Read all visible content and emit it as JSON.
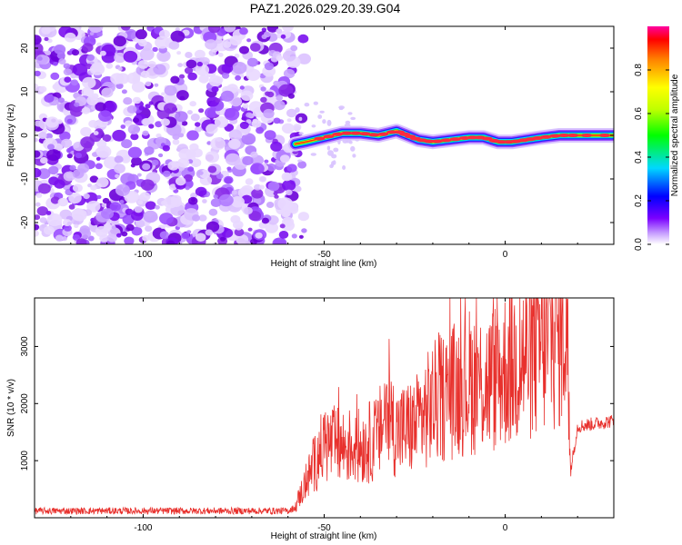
{
  "title": "PAZ1.2026.029.20.39.G04",
  "chart_data": [
    {
      "type": "heatmap",
      "name": "spectrogram",
      "xlabel": "Height of straight line (km)",
      "ylabel": "Frequency (Hz)",
      "xlim": [
        -130,
        30
      ],
      "ylim": [
        -25,
        25
      ],
      "x_ticks": [
        -100,
        -50,
        0
      ],
      "x_tick_labels": [
        "-100",
        "-50",
        "0"
      ],
      "y_ticks": [
        20,
        10,
        0,
        -10,
        -20
      ],
      "y_tick_labels": [
        "20",
        "10",
        "0",
        "-10",
        "-20"
      ],
      "noise_region_end_km": -58,
      "ridge_frequency_hz": [
        [
          -58,
          -2
        ],
        [
          -55,
          -1.5
        ],
        [
          -50,
          -0.5
        ],
        [
          -45,
          0.5
        ],
        [
          -40,
          0.5
        ],
        [
          -35,
          0
        ],
        [
          -30,
          1
        ],
        [
          -27,
          0
        ],
        [
          -24,
          -1
        ],
        [
          -20,
          -1.5
        ],
        [
          -15,
          -1
        ],
        [
          -10,
          -0.5
        ],
        [
          -6,
          -0.5
        ],
        [
          -2,
          -1.5
        ],
        [
          2,
          -1.5
        ],
        [
          6,
          -1
        ],
        [
          10,
          -0.5
        ],
        [
          15,
          0
        ],
        [
          20,
          0
        ],
        [
          30,
          0
        ]
      ],
      "colorbar": {
        "label": "Normalized spectral amplitude",
        "range": [
          0,
          1
        ],
        "ticks": [
          0.0,
          0.2,
          0.4,
          0.6,
          0.8
        ],
        "tick_labels": [
          "0.0",
          "0.2",
          "0.4",
          "0.6",
          "0.8"
        ]
      }
    },
    {
      "type": "line",
      "name": "snr",
      "xlabel": "Height of straight line (km)",
      "ylabel": "SNR (10 * v/v)",
      "xlim": [
        -130,
        30
      ],
      "ylim": [
        0,
        3850
      ],
      "x_ticks": [
        -100,
        -50,
        0
      ],
      "x_tick_labels": [
        "-100",
        "-50",
        "0"
      ],
      "y_ticks": [
        1000,
        2000,
        3000
      ],
      "y_tick_labels": [
        "1000",
        "2000",
        "3000"
      ],
      "color": "#e8312d",
      "series_envelope": {
        "x": [
          -130,
          -60,
          -58,
          -57,
          -53,
          -50,
          -45,
          -40,
          -35,
          -33,
          -30,
          -25,
          -20,
          -15,
          -10,
          -5,
          0,
          5,
          10,
          15,
          17,
          18,
          20,
          25,
          30
        ],
        "y": [
          120,
          120,
          180,
          350,
          900,
          1300,
          1250,
          1250,
          1400,
          1900,
          1500,
          1600,
          2000,
          2200,
          2400,
          2350,
          2600,
          2800,
          3000,
          3300,
          3500,
          800,
          1600,
          1650,
          1700
        ]
      }
    }
  ]
}
